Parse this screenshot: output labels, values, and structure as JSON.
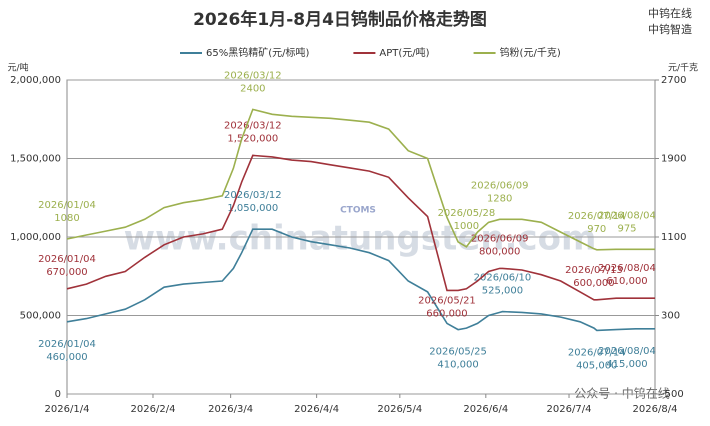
{
  "chart_data": {
    "type": "line",
    "title": "2026年1月-8月4日钨制品价格走势图",
    "ylabel": "元/吨",
    "y2label": "元/千克",
    "brand": [
      "中钨在线",
      "中钨智造"
    ],
    "watermark": "www.chinatungsten.com",
    "logo": "CTOMS",
    "footer_note": "公众号 · 中钨在线",
    "grid": true,
    "legend": "top",
    "xlim": [
      "2026/1/4",
      "2026/8/4"
    ],
    "xticks": [
      "2026/1/4",
      "2026/2/4",
      "2026/3/4",
      "2026/4/4",
      "2026/5/4",
      "2026/6/4",
      "2026/7/4",
      "2026/8/4"
    ],
    "ylim": [
      0,
      2000000
    ],
    "yticks": [
      0,
      {
        "value": 500000,
        "label": "500,000"
      },
      {
        "value": 1000000,
        "label": "1,000,000"
      },
      {
        "value": 1500000,
        "label": "1,500,000"
      },
      {
        "value": 2000000,
        "label": "2,000,000"
      }
    ],
    "y2lim": [
      -500,
      2700
    ],
    "y2ticks": [
      -500,
      300,
      1100,
      1900,
      2700
    ],
    "x": [
      "2026/01/04",
      "2026/01/11",
      "2026/01/18",
      "2026/01/25",
      "2026/02/01",
      "2026/02/08",
      "2026/02/15",
      "2026/02/22",
      "2026/03/01",
      "2026/03/05",
      "2026/03/08",
      "2026/03/12",
      "2026/03/19",
      "2026/03/26",
      "2026/04/02",
      "2026/04/09",
      "2026/04/16",
      "2026/04/23",
      "2026/04/30",
      "2026/05/07",
      "2026/05/14",
      "2026/05/21",
      "2026/05/25",
      "2026/05/28",
      "2026/06/01",
      "2026/06/05",
      "2026/06/09",
      "2026/06/10",
      "2026/06/17",
      "2026/06/24",
      "2026/07/01",
      "2026/07/08",
      "2026/07/13",
      "2026/07/14",
      "2026/07/21",
      "2026/07/28",
      "2026/08/04"
    ],
    "series": [
      {
        "name": "65%黑钨精矿(元/标吨)",
        "color": "#3f7f99",
        "values": [
          460000,
          480000,
          510000,
          540000,
          600000,
          680000,
          700000,
          710000,
          720000,
          800000,
          900000,
          1050000,
          1050000,
          1000000,
          970000,
          950000,
          930000,
          900000,
          850000,
          720000,
          650000,
          450000,
          410000,
          420000,
          450000,
          500000,
          520000,
          525000,
          520000,
          510000,
          490000,
          460000,
          420000,
          405000,
          410000,
          415000,
          415000
        ],
        "value_labels": [
          "460,000",
          null,
          null,
          null,
          null,
          null,
          null,
          null,
          null,
          null,
          null,
          "1,050,000",
          null,
          null,
          null,
          null,
          null,
          null,
          null,
          null,
          null,
          null,
          "410,000",
          null,
          null,
          null,
          null,
          "525,000",
          null,
          null,
          null,
          null,
          null,
          "405,000",
          null,
          null,
          "415,000"
        ]
      },
      {
        "name": "APT(元/吨)",
        "color": "#a0323a",
        "values": [
          670000,
          700000,
          750000,
          780000,
          870000,
          950000,
          1000000,
          1020000,
          1050000,
          1200000,
          1350000,
          1520000,
          1510000,
          1490000,
          1480000,
          1460000,
          1440000,
          1420000,
          1380000,
          1250000,
          1130000,
          660000,
          660000,
          670000,
          720000,
          780000,
          800000,
          800000,
          790000,
          760000,
          720000,
          650000,
          600000,
          600000,
          610000,
          610000,
          610000
        ],
        "value_labels": [
          "670,000",
          null,
          null,
          null,
          null,
          null,
          null,
          null,
          null,
          null,
          null,
          "1,520,000",
          null,
          null,
          null,
          null,
          null,
          null,
          null,
          null,
          null,
          "660,000",
          null,
          null,
          null,
          null,
          "800,000",
          null,
          null,
          null,
          null,
          null,
          "600,000",
          null,
          null,
          null,
          "610,000"
        ]
      },
      {
        "name": "钨粉(元/千克)",
        "color": "#9cb04e",
        "axis": "y2",
        "values": [
          1080,
          1120,
          1160,
          1200,
          1280,
          1400,
          1450,
          1480,
          1520,
          1800,
          2100,
          2400,
          2350,
          2330,
          2320,
          2310,
          2290,
          2270,
          2200,
          1980,
          1900,
          1300,
          1050,
          1000,
          1150,
          1250,
          1280,
          1280,
          1280,
          1250,
          1150,
          1050,
          980,
          970,
          975,
          975,
          975
        ],
        "value_labels": [
          "1080",
          null,
          null,
          null,
          null,
          null,
          null,
          null,
          null,
          null,
          null,
          "2400",
          null,
          null,
          null,
          null,
          null,
          null,
          null,
          null,
          null,
          null,
          null,
          "1000",
          null,
          null,
          "1280",
          null,
          null,
          null,
          null,
          null,
          null,
          "970",
          null,
          null,
          "975"
        ]
      }
    ]
  }
}
